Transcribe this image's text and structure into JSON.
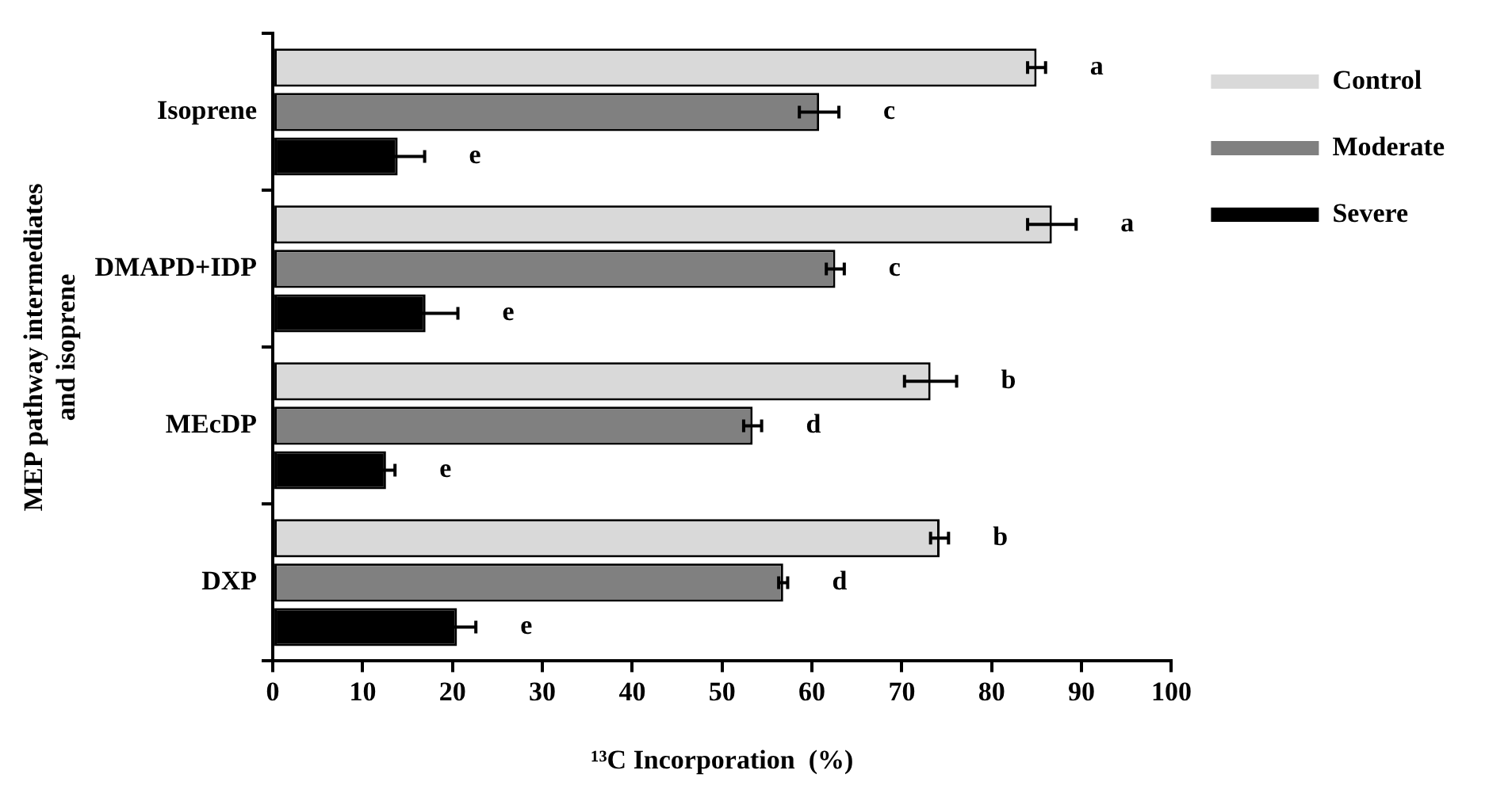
{
  "chart_data": {
    "type": "bar",
    "orientation": "horizontal",
    "xlabel": "¹³C Incorporation  (%)",
    "ylabel": "MEP pathway intermediates and isoprene",
    "categories": [
      "Isoprene",
      "DMAPD+IDP",
      "MEcDP",
      "DXP"
    ],
    "series": [
      {
        "name": "Control",
        "color": "#d9d9d9",
        "values": [
          85,
          86.7,
          73.2,
          74.2
        ],
        "errors": [
          1,
          2.7,
          2.9,
          1
        ],
        "value_labels": [
          "a",
          "a",
          "b",
          "b"
        ]
      },
      {
        "name": "Moderate",
        "color": "#808080",
        "values": [
          60.8,
          62.6,
          53.4,
          56.8
        ],
        "errors": [
          2.2,
          1,
          1,
          0.5
        ],
        "value_labels": [
          "c",
          "c",
          "d",
          "d"
        ]
      },
      {
        "name": "Severe",
        "color": "#000000",
        "values": [
          13.9,
          17,
          12.6,
          20.5
        ],
        "errors": [
          3,
          3.6,
          1,
          2.1
        ],
        "value_labels": [
          "e",
          "e",
          "e",
          "e"
        ]
      }
    ],
    "xlim": [
      0,
      100
    ],
    "xticks": [
      0,
      10,
      20,
      30,
      40,
      50,
      60,
      70,
      80,
      90,
      100
    ],
    "grid": false,
    "legend": "top right"
  }
}
